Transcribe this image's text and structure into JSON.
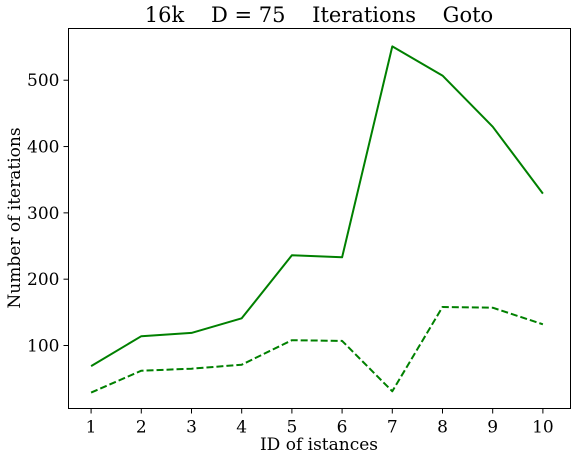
{
  "chart_data": {
    "type": "line",
    "title": "16k    D = 75    Iterations    Goto",
    "xlabel": "ID of istances",
    "ylabel": "Number of iterations",
    "x": [
      1,
      2,
      3,
      4,
      5,
      6,
      7,
      8,
      9,
      10
    ],
    "x_tick_labels": [
      "1",
      "2",
      "3",
      "4",
      "5",
      "6",
      "7",
      "8",
      "9",
      "10"
    ],
    "y_ticks": [
      100,
      200,
      300,
      400,
      500
    ],
    "y_tick_labels": [
      "100",
      "200",
      "300",
      "400",
      "500"
    ],
    "xlim": [
      0.55,
      10.55
    ],
    "ylim": [
      5,
      578
    ],
    "grid": false,
    "series": [
      {
        "style": "solid",
        "color": "#008000",
        "values": [
          69,
          114,
          119,
          141,
          236,
          233,
          551,
          507,
          430,
          329
        ]
      },
      {
        "style": "dashed",
        "color": "#008000",
        "values": [
          29,
          62,
          65,
          71,
          108,
          107,
          31,
          158,
          157,
          132
        ]
      }
    ]
  }
}
